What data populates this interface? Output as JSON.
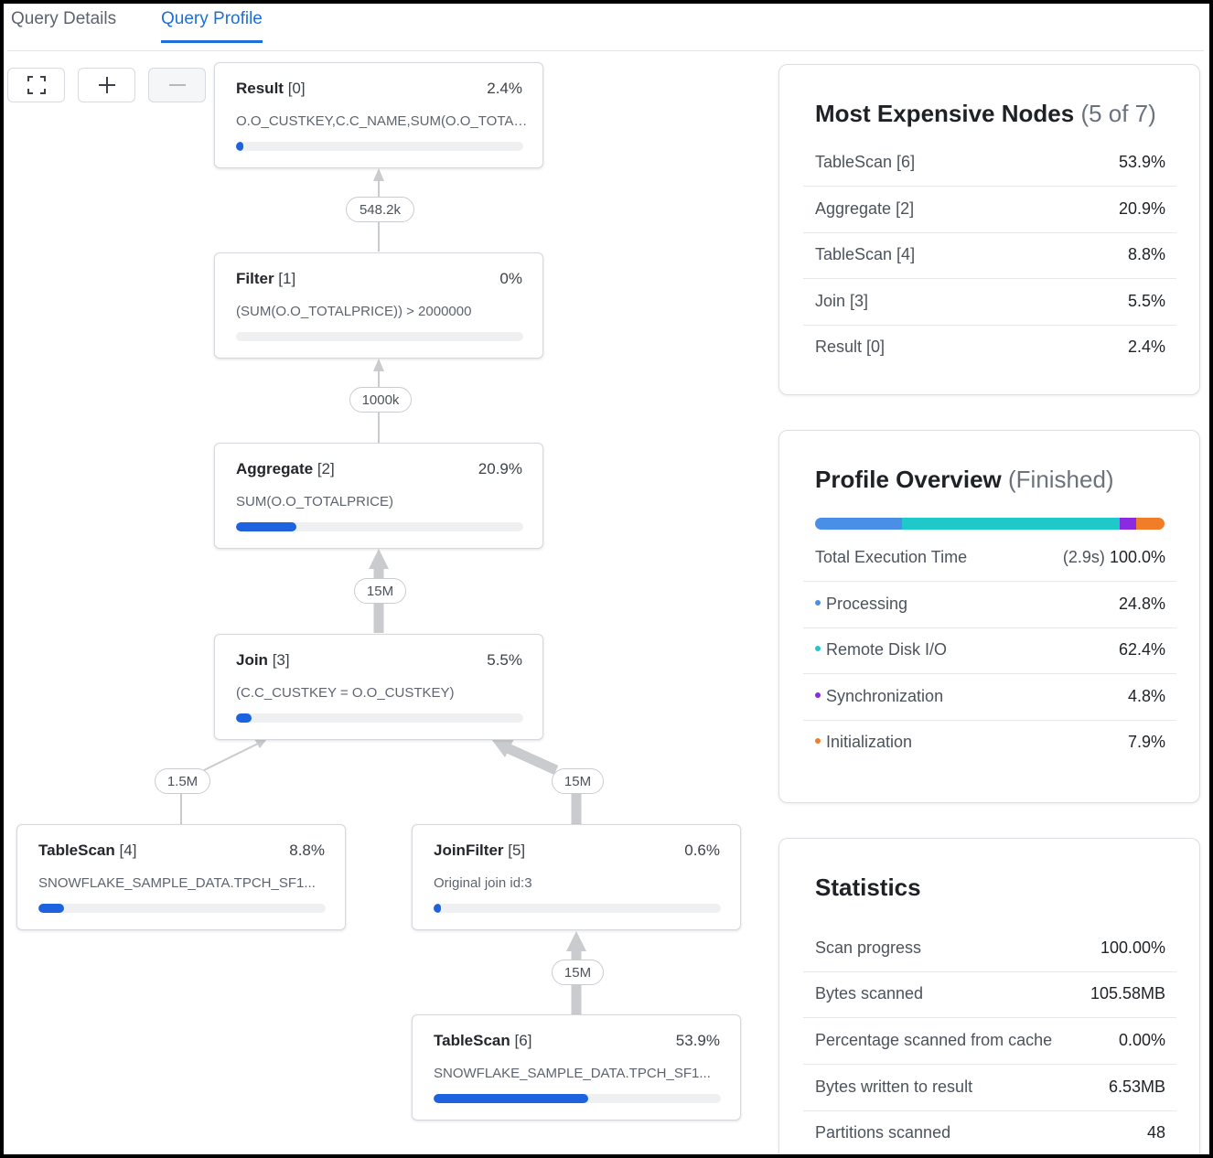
{
  "tabs": [
    {
      "label": "Query Details",
      "active": false
    },
    {
      "label": "Query Profile",
      "active": true
    }
  ],
  "toolbar": {
    "fit_icon": "fit-screen-icon",
    "zoom_in_icon": "plus-icon",
    "zoom_out_icon": "minus-icon"
  },
  "nodes": {
    "result": {
      "name": "Result",
      "id": "[0]",
      "pct": "2.4%",
      "desc": "O.O_CUSTKEY,C.C_NAME,SUM(O.O_TOTALPRICE)",
      "progress": 0.024
    },
    "filter": {
      "name": "Filter",
      "id": "[1]",
      "pct": "0%",
      "desc": "(SUM(O.O_TOTALPRICE)) > 2000000",
      "progress": 0
    },
    "aggregate": {
      "name": "Aggregate",
      "id": "[2]",
      "pct": "20.9%",
      "desc": "SUM(O.O_TOTALPRICE)",
      "progress": 0.209
    },
    "join": {
      "name": "Join",
      "id": "[3]",
      "pct": "5.5%",
      "desc": "(C.C_CUSTKEY = O.O_CUSTKEY)",
      "progress": 0.055
    },
    "tablescan4": {
      "name": "TableScan",
      "id": "[4]",
      "pct": "8.8%",
      "desc": "SNOWFLAKE_SAMPLE_DATA.TPCH_SF1...",
      "progress": 0.088
    },
    "joinfilter": {
      "name": "JoinFilter",
      "id": "[5]",
      "pct": "0.6%",
      "desc": "Original join id:3",
      "progress": 0.006
    },
    "tablescan6": {
      "name": "TableScan",
      "id": "[6]",
      "pct": "53.9%",
      "desc": "SNOWFLAKE_SAMPLE_DATA.TPCH_SF1...",
      "progress": 0.539
    }
  },
  "edges": {
    "filter_result": "548.2k",
    "aggregate_filter": "1000k",
    "join_aggregate": "15M",
    "ts4_join": "1.5M",
    "joinfilter_join": "15M",
    "ts6_joinfilter": "15M"
  },
  "expensive": {
    "title": "Most Expensive Nodes",
    "count": "(5 of 7)",
    "rows": [
      {
        "label": "TableScan [6]",
        "value": "53.9%"
      },
      {
        "label": "Aggregate [2]",
        "value": "20.9%"
      },
      {
        "label": "TableScan [4]",
        "value": "8.8%"
      },
      {
        "label": "Join [3]",
        "value": "5.5%"
      },
      {
        "label": "Result [0]",
        "value": "2.4%"
      }
    ]
  },
  "overview": {
    "title": "Profile Overview",
    "status": "(Finished)",
    "total_label": "Total Execution Time",
    "total_time": "(2.9s)",
    "total_pct": "100.0%",
    "segments": [
      {
        "label": "Processing",
        "value": "24.8%",
        "fraction": 0.248,
        "color": "#4a8fe7"
      },
      {
        "label": "Remote Disk I/O",
        "value": "62.4%",
        "fraction": 0.624,
        "color": "#1fc9c9"
      },
      {
        "label": "Synchronization",
        "value": "4.8%",
        "fraction": 0.048,
        "color": "#8a2be2"
      },
      {
        "label": "Initialization",
        "value": "7.9%",
        "fraction": 0.079,
        "color": "#f27d29"
      }
    ]
  },
  "statistics": {
    "title": "Statistics",
    "rows": [
      {
        "label": "Scan progress",
        "value": "100.00%"
      },
      {
        "label": "Bytes scanned",
        "value": "105.58MB"
      },
      {
        "label": "Percentage scanned from cache",
        "value": "0.00%"
      },
      {
        "label": "Bytes written to result",
        "value": "6.53MB"
      },
      {
        "label": "Partitions scanned",
        "value": "48"
      }
    ]
  }
}
